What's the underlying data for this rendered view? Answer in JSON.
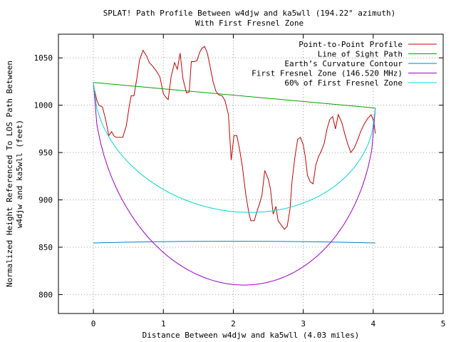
{
  "chart_data": {
    "type": "line",
    "title": "SPLAT! Path Profile Between w4djw and ka5wll (194.22° azimuth)",
    "subtitle": "With First Fresnel Zone",
    "xlabel": "Distance Between w4djw and ka5wll (4.03 miles)",
    "ylabel_line1": "Normalized Height Referenced To LOS Path Between",
    "ylabel_line2": "w4djw and ka5wll (feet)",
    "xlim": [
      -0.5,
      5
    ],
    "ylim": [
      780,
      1075
    ],
    "xticks": [
      0,
      1,
      2,
      3,
      4,
      5
    ],
    "yticks": [
      800,
      850,
      900,
      950,
      1000,
      1050
    ],
    "grid": true,
    "legend_position": "top-right",
    "series": [
      {
        "name": "Point-to-Point Profile",
        "color": "#cc0000",
        "x": [
          0.0,
          0.05,
          0.08,
          0.13,
          0.18,
          0.22,
          0.26,
          0.3,
          0.33,
          0.37,
          0.42,
          0.47,
          0.51,
          0.54,
          0.58,
          0.62,
          0.66,
          0.71,
          0.76,
          0.8,
          0.85,
          0.9,
          0.95,
          1.0,
          1.04,
          1.07,
          1.11,
          1.16,
          1.2,
          1.24,
          1.28,
          1.33,
          1.37,
          1.4,
          1.44,
          1.48,
          1.52,
          1.55,
          1.59,
          1.63,
          1.67,
          1.71,
          1.75,
          1.79,
          1.84,
          1.88,
          1.93,
          1.97,
          2.01,
          2.05,
          2.09,
          2.13,
          2.18,
          2.22,
          2.25,
          2.3,
          2.33,
          2.37,
          2.41,
          2.45,
          2.5,
          2.53,
          2.57,
          2.61,
          2.64,
          2.69,
          2.73,
          2.77,
          2.81,
          2.84,
          2.88,
          2.92,
          2.96,
          3.0,
          3.03,
          3.06,
          3.1,
          3.14,
          3.18,
          3.22,
          3.26,
          3.3,
          3.34,
          3.38,
          3.42,
          3.46,
          3.5,
          3.55,
          3.6,
          3.64,
          3.68,
          3.73,
          3.77,
          3.82,
          3.87,
          3.92,
          3.97,
          4.01,
          4.03
        ],
        "y": [
          1021,
          1005,
          1000,
          998,
          983,
          968,
          972,
          967,
          966,
          966,
          966,
          978,
          998,
          1010,
          1010,
          1028,
          1048,
          1058,
          1052,
          1045,
          1041,
          1036,
          1030,
          1012,
          1008,
          1006,
          1030,
          1045,
          1038,
          1055,
          1028,
          1013,
          1014,
          1046,
          1046,
          1047,
          1056,
          1060,
          1062,
          1055,
          1040,
          1025,
          1015,
          1011,
          1010,
          1005,
          990,
          942,
          968,
          968,
          953,
          935,
          905,
          887,
          878,
          878,
          886,
          895,
          905,
          931,
          922,
          912,
          885,
          893,
          878,
          873,
          869,
          872,
          890,
          920,
          945,
          964,
          966,
          958,
          945,
          926,
          919,
          917,
          937,
          946,
          952,
          960,
          975,
          985,
          988,
          975,
          990,
          982,
          968,
          958,
          950,
          955,
          962,
          972,
          980,
          986,
          990,
          982,
          970
        ],
        "y_seq_note": ""
      },
      {
        "name": "Line of Sight Path",
        "color": "#00a000",
        "x": [
          0.0,
          4.03
        ],
        "y": [
          1024,
          997
        ]
      },
      {
        "name": "Earth’s Curvature Contour",
        "color": "#0080c0",
        "x": [
          0.0,
          0.5,
          1.0,
          1.5,
          2.0,
          2.5,
          3.0,
          3.5,
          4.03
        ],
        "y": [
          854.5,
          855.3,
          855.9,
          856.2,
          856.3,
          856.2,
          855.9,
          855.3,
          854.5
        ]
      },
      {
        "name": "First Fresnel Zone (146.520 MHz)",
        "color": "#a000c8",
        "fresnel": {
          "los_start": 1024,
          "los_end": 997,
          "x_end": 4.03,
          "radius_ft": 200
        }
      },
      {
        "name": "60% of First Fresnel Zone",
        "color": "#00d8d8",
        "fresnel": {
          "los_start": 1024,
          "los_end": 997,
          "x_end": 4.03,
          "radius_ft": 123
        }
      }
    ]
  }
}
